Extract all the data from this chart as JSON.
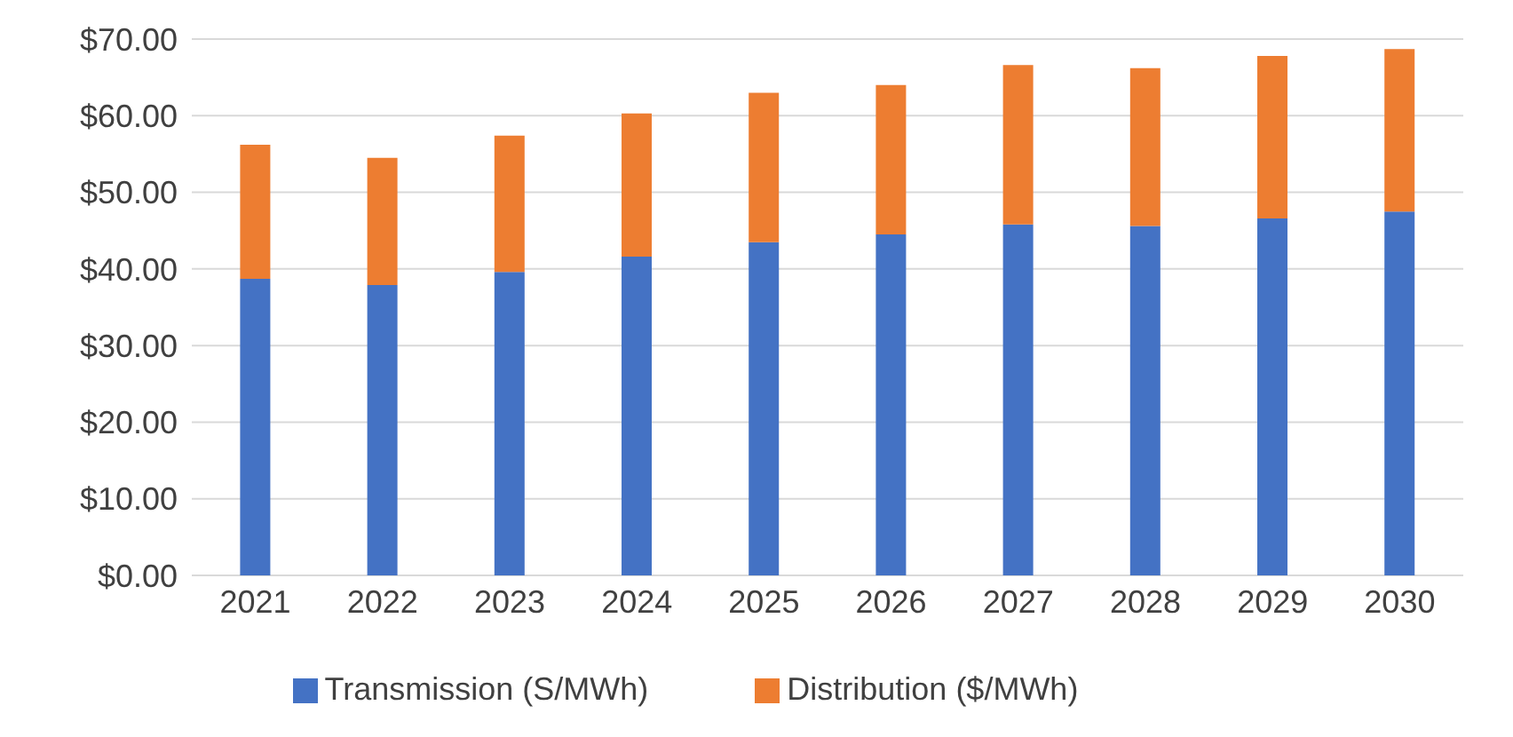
{
  "chart_data": {
    "type": "bar",
    "stacked": true,
    "categories": [
      "2021",
      "2022",
      "2023",
      "2024",
      "2025",
      "2026",
      "2027",
      "2028",
      "2029",
      "2030"
    ],
    "series": [
      {
        "name": "Transmission (S/MWh)",
        "color": "#4472c4",
        "values": [
          38.7,
          37.9,
          39.6,
          41.6,
          43.5,
          44.5,
          45.8,
          45.6,
          46.6,
          47.5
        ]
      },
      {
        "name": "Distribution ($/MWh)",
        "color": "#ed7d31",
        "values": [
          17.5,
          16.6,
          17.8,
          18.7,
          19.5,
          19.5,
          20.8,
          20.6,
          21.2,
          21.2
        ]
      }
    ],
    "ylim": [
      0,
      70
    ],
    "yticks": [
      {
        "value": 0,
        "label": "$0.00"
      },
      {
        "value": 10,
        "label": "$10.00"
      },
      {
        "value": 20,
        "label": "$20.00"
      },
      {
        "value": 30,
        "label": "$30.00"
      },
      {
        "value": 40,
        "label": "$40.00"
      },
      {
        "value": 50,
        "label": "$50.00"
      },
      {
        "value": 60,
        "label": "$60.00"
      },
      {
        "value": 70,
        "label": "$70.00"
      }
    ],
    "grid": "y",
    "legend": "bottom"
  }
}
